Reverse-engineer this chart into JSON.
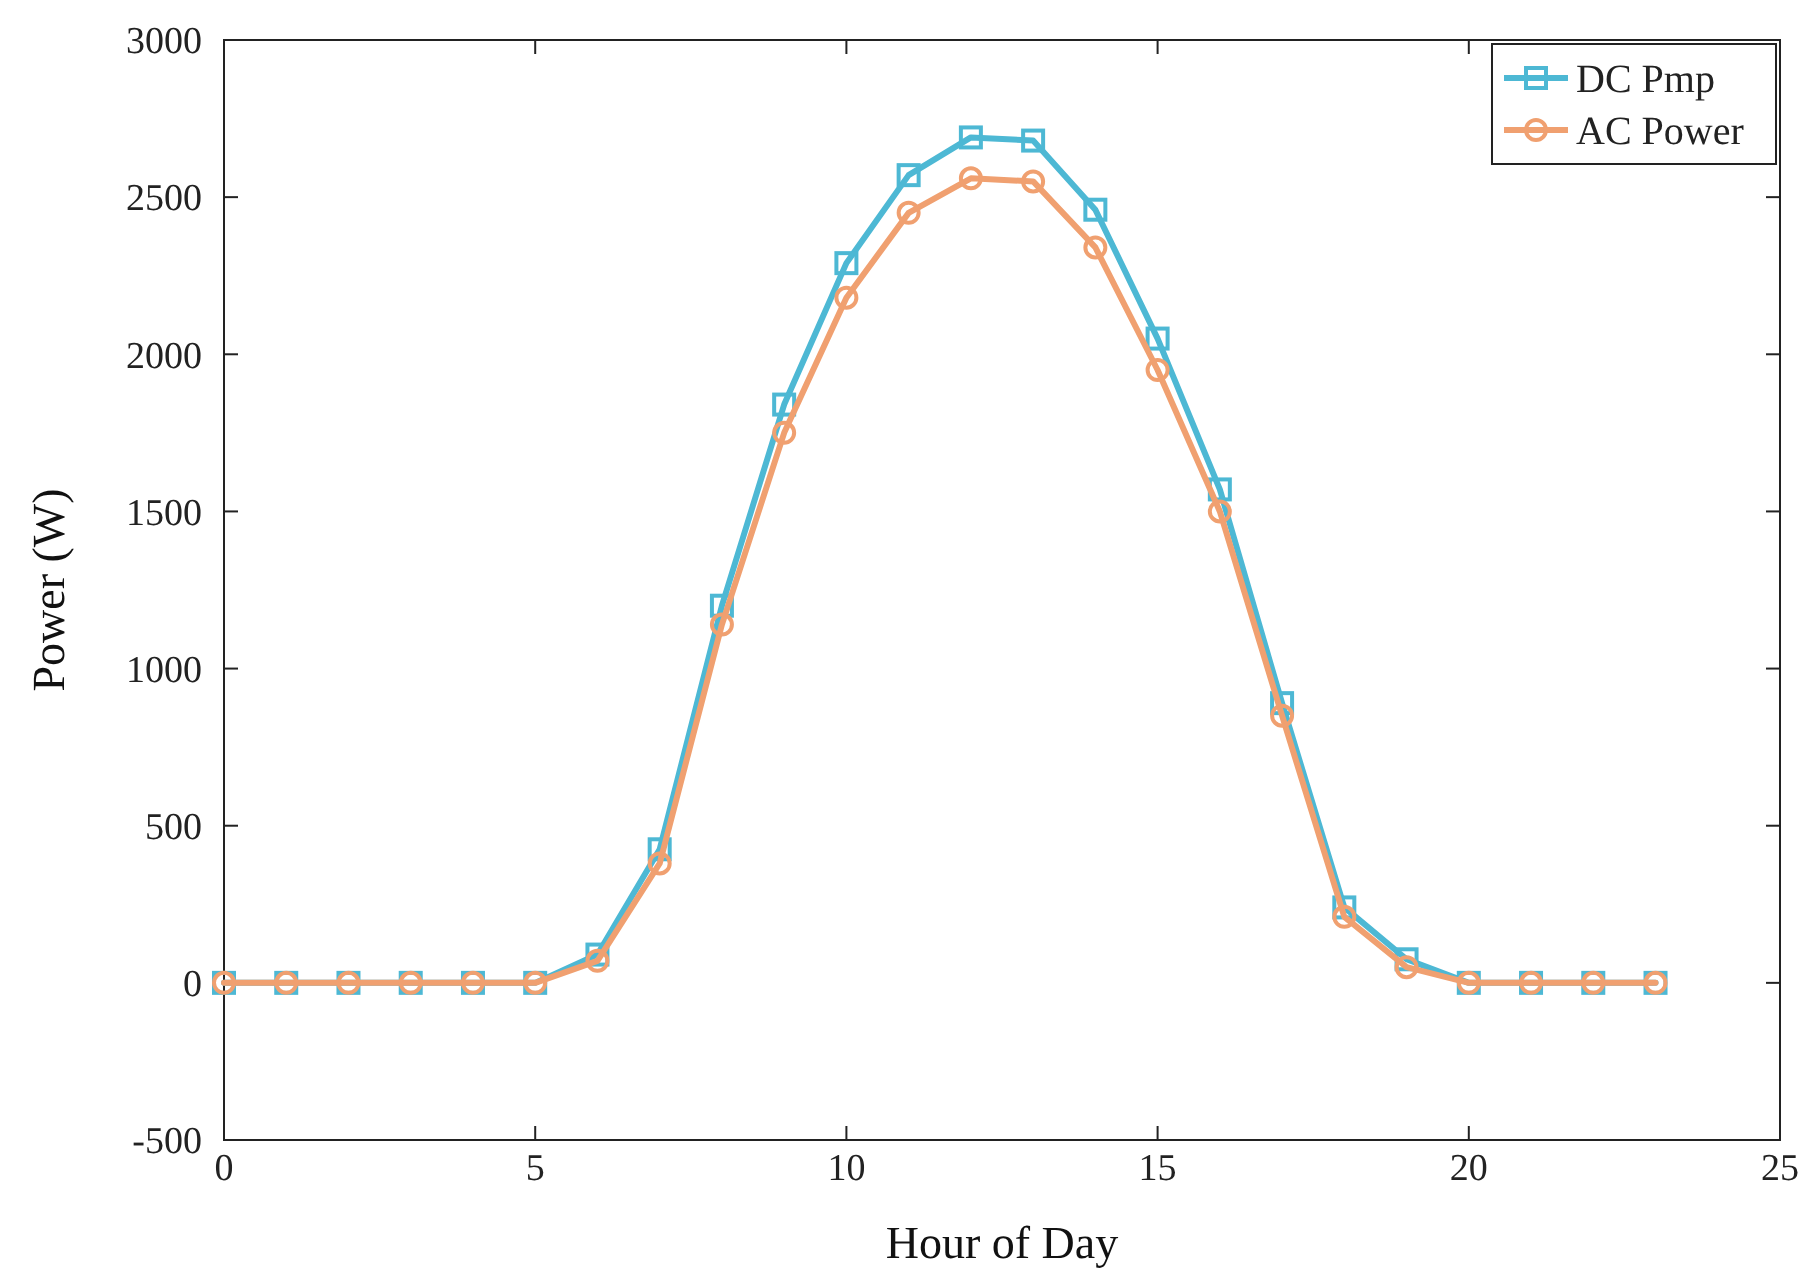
{
  "chart_data": {
    "type": "line",
    "xlabel": "Hour of Day",
    "ylabel": "Power (W)",
    "x": [
      0,
      1,
      2,
      3,
      4,
      5,
      6,
      7,
      8,
      9,
      10,
      11,
      12,
      13,
      14,
      15,
      16,
      17,
      18,
      19,
      20,
      21,
      22,
      23
    ],
    "series": [
      {
        "name": "DC Pmp",
        "color": "#4db8d4",
        "marker": "square",
        "values": [
          0,
          0,
          0,
          0,
          0,
          0,
          90,
          425,
          1200,
          1840,
          2290,
          2570,
          2690,
          2680,
          2460,
          2050,
          1570,
          890,
          240,
          75,
          0,
          0,
          0,
          0
        ]
      },
      {
        "name": "AC Power",
        "color": "#f0a070",
        "marker": "circle",
        "values": [
          0,
          0,
          0,
          0,
          0,
          0,
          70,
          380,
          1140,
          1750,
          2180,
          2450,
          2560,
          2550,
          2340,
          1950,
          1500,
          850,
          210,
          50,
          0,
          0,
          0,
          0
        ]
      }
    ],
    "xlim": [
      0,
      25
    ],
    "xticks": [
      0,
      5,
      10,
      15,
      20,
      25
    ],
    "ylim": [
      -500,
      3000
    ],
    "yticks": [
      -500,
      0,
      500,
      1000,
      1500,
      2000,
      2500,
      3000
    ],
    "grid": false,
    "legend": "top right",
    "line_style": "solid"
  }
}
